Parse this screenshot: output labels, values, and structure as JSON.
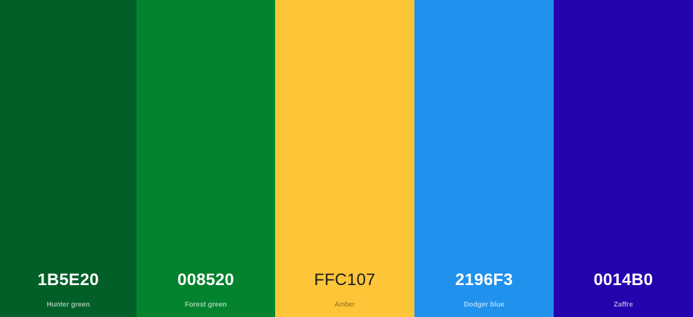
{
  "palette": {
    "swatches": [
      {
        "hex": "1B5E20",
        "name": "Hunter green",
        "color": "#035F28",
        "text_tone": "dark"
      },
      {
        "hex": "008520",
        "name": "Forest green",
        "color": "#04832E",
        "text_tone": "dark"
      },
      {
        "hex": "FFC107",
        "name": "Amber",
        "color": "#FEC539",
        "text_tone": "light"
      },
      {
        "hex": "2196F3",
        "name": "Dodger blue",
        "color": "#2092EE",
        "text_tone": "dark"
      },
      {
        "hex": "0014B0",
        "name": "Zaffre",
        "color": "#2503AD",
        "text_tone": "dark"
      }
    ]
  }
}
